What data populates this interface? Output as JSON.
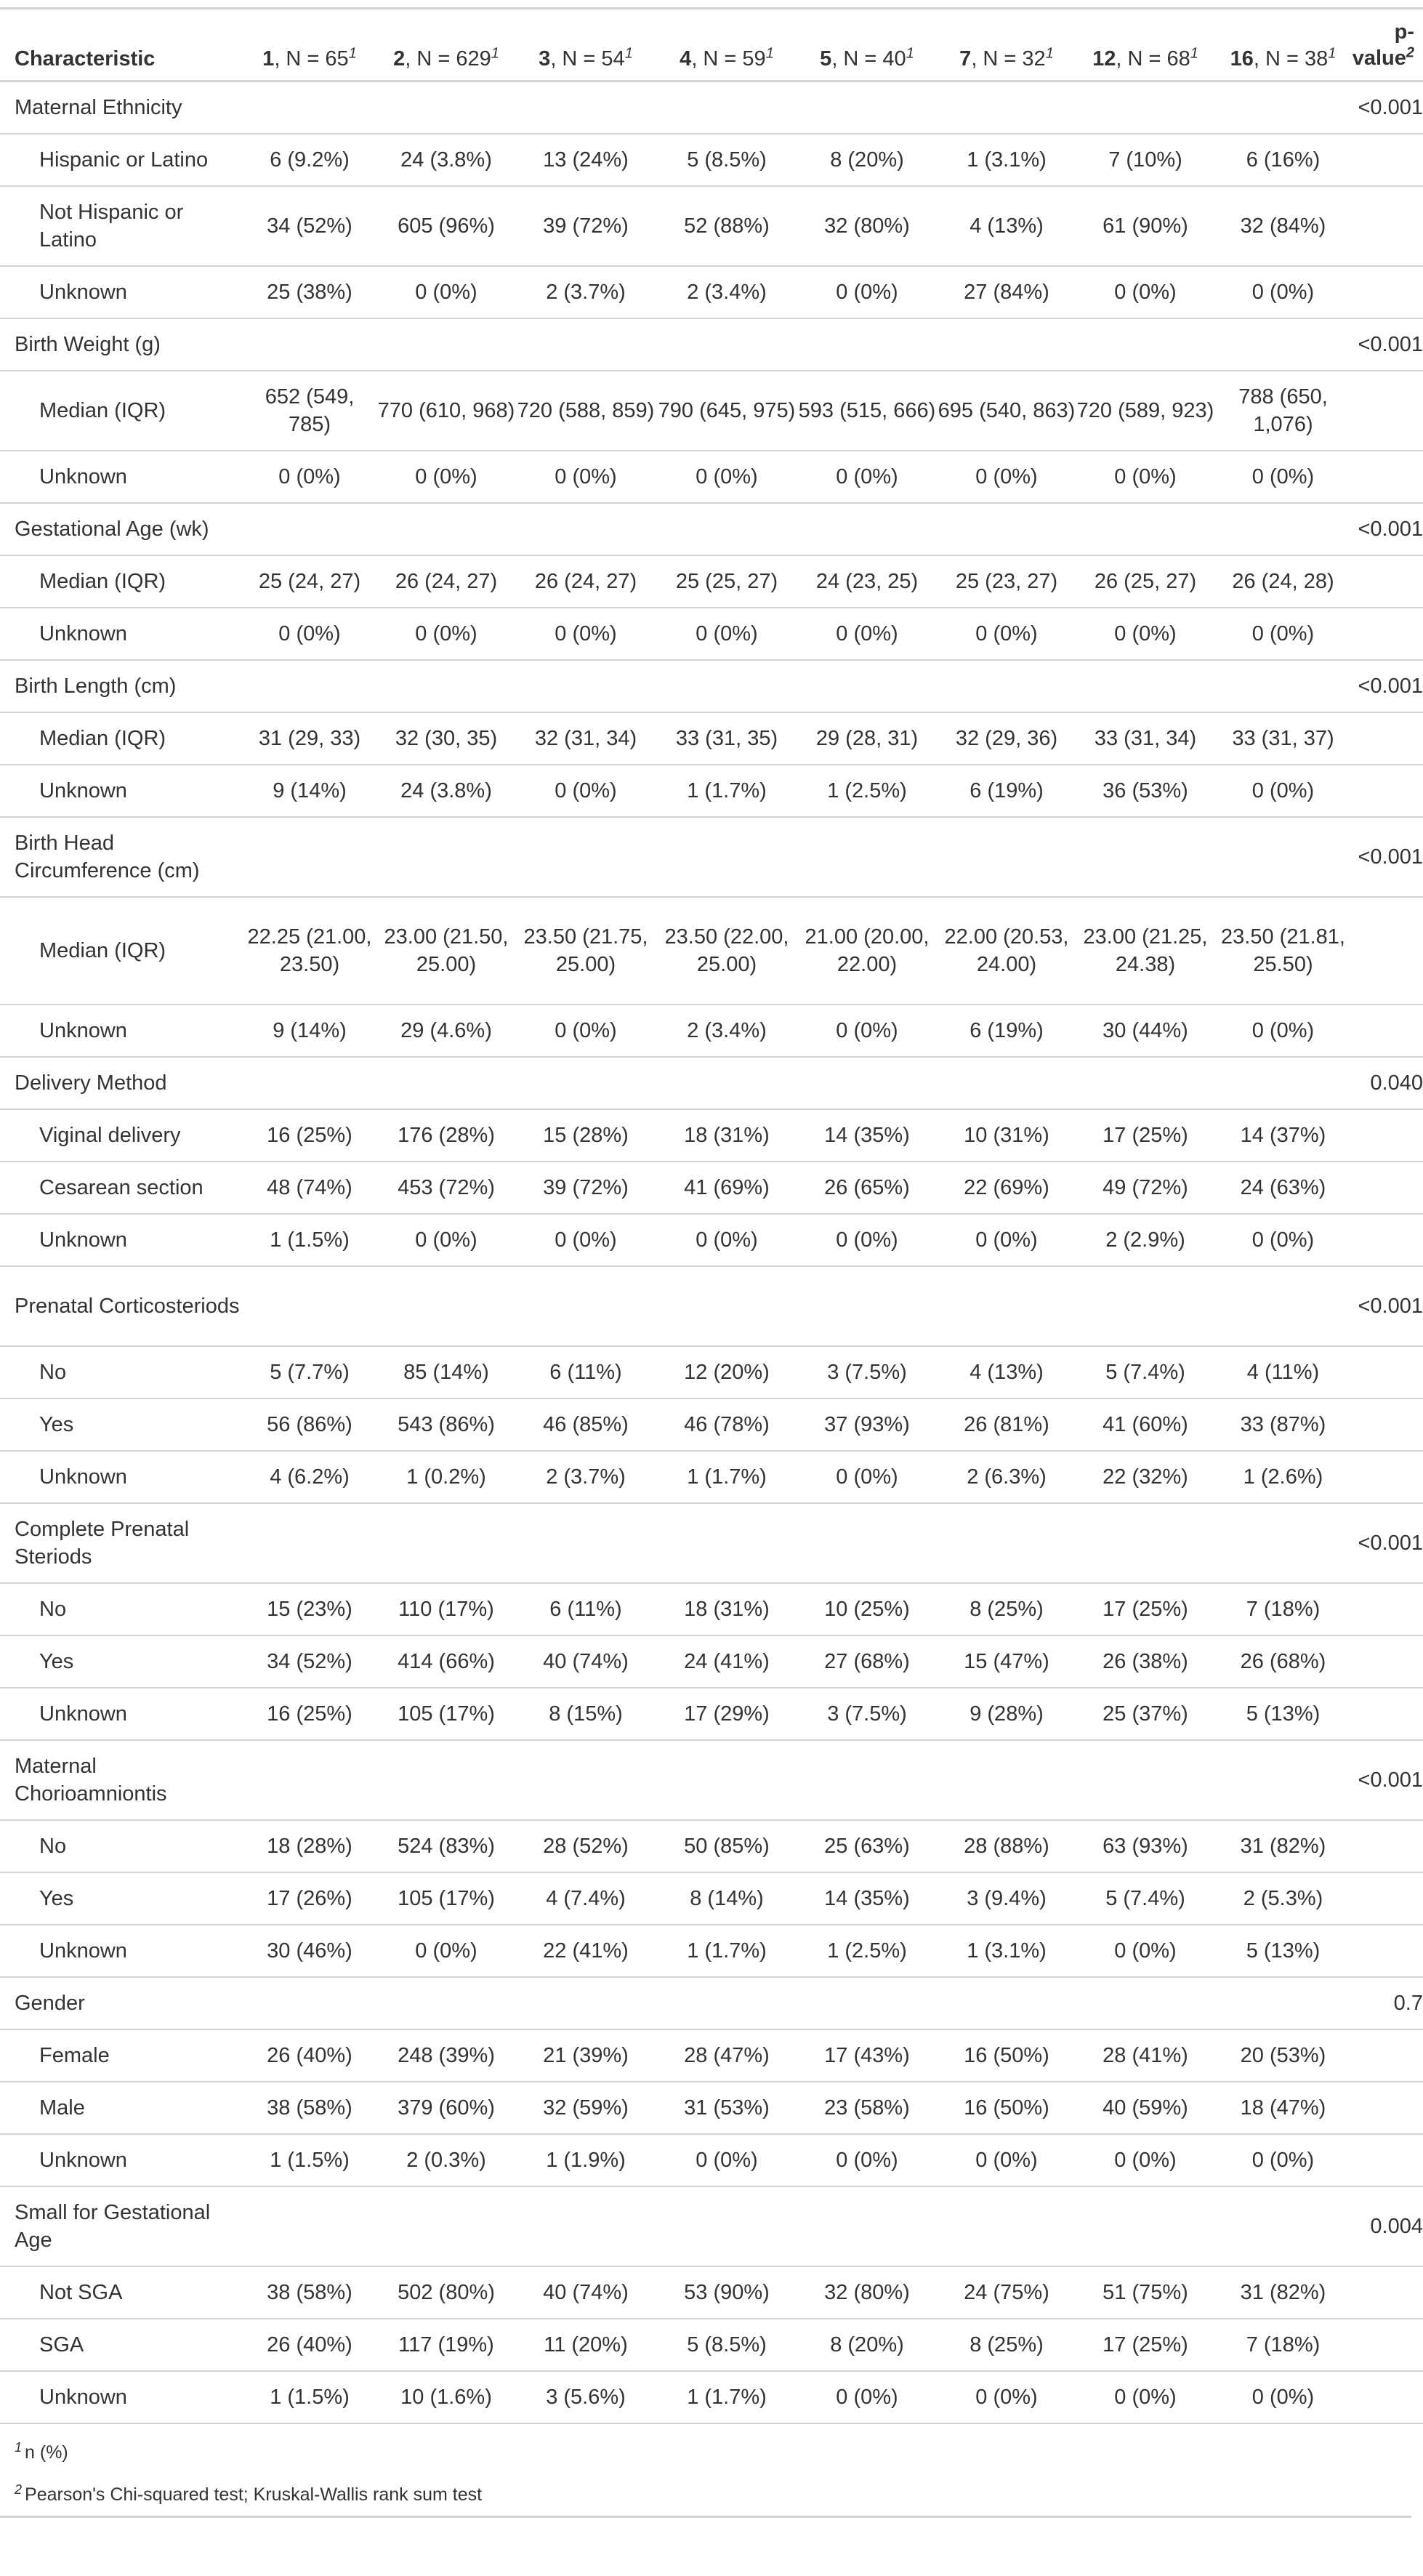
{
  "header": {
    "characteristic": "Characteristic",
    "columns": [
      {
        "bold": "1",
        "rest": ", N = 65",
        "mark": "1"
      },
      {
        "bold": "2",
        "rest": ", N = 629",
        "mark": "1"
      },
      {
        "bold": "3",
        "rest": ", N = 54",
        "mark": "1"
      },
      {
        "bold": "4",
        "rest": ", N = 59",
        "mark": "1"
      },
      {
        "bold": "5",
        "rest": ", N = 40",
        "mark": "1"
      },
      {
        "bold": "7",
        "rest": ", N = 32",
        "mark": "1"
      },
      {
        "bold": "12",
        "rest": ", N = 68",
        "mark": "1"
      },
      {
        "bold": "16",
        "rest": ", N = 38",
        "mark": "1"
      }
    ],
    "pvalue": "p-value",
    "pvalue_mark": "2"
  },
  "groups": [
    {
      "label": "Maternal Ethnicity",
      "p": "<0.001",
      "rows": [
        {
          "label": "Hispanic or Latino",
          "v": [
            "6 (9.2%)",
            "24 (3.8%)",
            "13 (24%)",
            "5 (8.5%)",
            "8 (20%)",
            "1 (3.1%)",
            "7 (10%)",
            "6 (16%)"
          ]
        },
        {
          "label": "Not Hispanic or Latino",
          "v": [
            "34 (52%)",
            "605 (96%)",
            "39 (72%)",
            "52 (88%)",
            "32 (80%)",
            "4 (13%)",
            "61 (90%)",
            "32 (84%)"
          ]
        },
        {
          "label": "Unknown",
          "v": [
            "25 (38%)",
            "0 (0%)",
            "2 (3.7%)",
            "2 (3.4%)",
            "0 (0%)",
            "27 (84%)",
            "0 (0%)",
            "0 (0%)"
          ]
        }
      ]
    },
    {
      "label": "Birth Weight (g)",
      "p": "<0.001",
      "rows": [
        {
          "label": "Median (IQR)",
          "v": [
            "652 (549, 785)",
            "770 (610, 968)",
            "720 (588, 859)",
            "790 (645, 975)",
            "593 (515, 666)",
            "695 (540, 863)",
            "720 (589, 923)",
            "788 (650, 1,076)"
          ]
        },
        {
          "label": "Unknown",
          "v": [
            "0 (0%)",
            "0 (0%)",
            "0 (0%)",
            "0 (0%)",
            "0 (0%)",
            "0 (0%)",
            "0 (0%)",
            "0 (0%)"
          ]
        }
      ]
    },
    {
      "label": "Gestational Age (wk)",
      "p": "<0.001",
      "rows": [
        {
          "label": "Median (IQR)",
          "v": [
            "25 (24, 27)",
            "26 (24, 27)",
            "26 (24, 27)",
            "25 (25, 27)",
            "24 (23, 25)",
            "25 (23, 27)",
            "26 (25, 27)",
            "26 (24, 28)"
          ]
        },
        {
          "label": "Unknown",
          "v": [
            "0 (0%)",
            "0 (0%)",
            "0 (0%)",
            "0 (0%)",
            "0 (0%)",
            "0 (0%)",
            "0 (0%)",
            "0 (0%)"
          ]
        }
      ]
    },
    {
      "label": "Birth Length (cm)",
      "p": "<0.001",
      "rows": [
        {
          "label": "Median (IQR)",
          "v": [
            "31 (29, 33)",
            "32 (30, 35)",
            "32 (31, 34)",
            "33 (31, 35)",
            "29 (28, 31)",
            "32 (29, 36)",
            "33 (31, 34)",
            "33 (31, 37)"
          ]
        },
        {
          "label": "Unknown",
          "v": [
            "9 (14%)",
            "24 (3.8%)",
            "0 (0%)",
            "1 (1.7%)",
            "1 (2.5%)",
            "6 (19%)",
            "36 (53%)",
            "0 (0%)"
          ]
        }
      ]
    },
    {
      "label": "Birth Head Circumference (cm)",
      "p": "<0.001",
      "rows": [
        {
          "label": "Median (IQR)",
          "v": [
            "22.25 (21.00, 23.50)",
            "23.00 (21.50, 25.00)",
            "23.50 (21.75, 25.00)",
            "23.50 (22.00, 25.00)",
            "21.00 (20.00, 22.00)",
            "22.00 (20.53, 24.00)",
            "23.00 (21.25, 24.38)",
            "23.50 (21.81, 25.50)"
          ]
        },
        {
          "label": "Unknown",
          "v": [
            "9 (14%)",
            "29 (4.6%)",
            "0 (0%)",
            "2 (3.4%)",
            "0 (0%)",
            "6 (19%)",
            "30 (44%)",
            "0 (0%)"
          ]
        }
      ]
    },
    {
      "label": "Delivery Method",
      "p": "0.040",
      "rows": [
        {
          "label": "Viginal delivery",
          "v": [
            "16 (25%)",
            "176 (28%)",
            "15 (28%)",
            "18 (31%)",
            "14 (35%)",
            "10 (31%)",
            "17 (25%)",
            "14 (37%)"
          ]
        },
        {
          "label": "Cesarean section",
          "v": [
            "48 (74%)",
            "453 (72%)",
            "39 (72%)",
            "41 (69%)",
            "26 (65%)",
            "22 (69%)",
            "49 (72%)",
            "24 (63%)"
          ]
        },
        {
          "label": "Unknown",
          "v": [
            "1 (1.5%)",
            "0 (0%)",
            "0 (0%)",
            "0 (0%)",
            "0 (0%)",
            "0 (0%)",
            "2 (2.9%)",
            "0 (0%)"
          ]
        }
      ]
    },
    {
      "label": "Prenatal Corticosteriods",
      "p": "<0.001",
      "rows": [
        {
          "label": "No",
          "v": [
            "5 (7.7%)",
            "85 (14%)",
            "6 (11%)",
            "12 (20%)",
            "3 (7.5%)",
            "4 (13%)",
            "5 (7.4%)",
            "4 (11%)"
          ]
        },
        {
          "label": "Yes",
          "v": [
            "56 (86%)",
            "543 (86%)",
            "46 (85%)",
            "46 (78%)",
            "37 (93%)",
            "26 (81%)",
            "41 (60%)",
            "33 (87%)"
          ]
        },
        {
          "label": "Unknown",
          "v": [
            "4 (6.2%)",
            "1 (0.2%)",
            "2 (3.7%)",
            "1 (1.7%)",
            "0 (0%)",
            "2 (6.3%)",
            "22 (32%)",
            "1 (2.6%)"
          ]
        }
      ]
    },
    {
      "label": "Complete Prenatal Steriods",
      "p": "<0.001",
      "rows": [
        {
          "label": "No",
          "v": [
            "15 (23%)",
            "110 (17%)",
            "6 (11%)",
            "18 (31%)",
            "10 (25%)",
            "8 (25%)",
            "17 (25%)",
            "7 (18%)"
          ]
        },
        {
          "label": "Yes",
          "v": [
            "34 (52%)",
            "414 (66%)",
            "40 (74%)",
            "24 (41%)",
            "27 (68%)",
            "15 (47%)",
            "26 (38%)",
            "26 (68%)"
          ]
        },
        {
          "label": "Unknown",
          "v": [
            "16 (25%)",
            "105 (17%)",
            "8 (15%)",
            "17 (29%)",
            "3 (7.5%)",
            "9 (28%)",
            "25 (37%)",
            "5 (13%)"
          ]
        }
      ]
    },
    {
      "label": "Maternal Chorioamniontis",
      "p": "<0.001",
      "rows": [
        {
          "label": "No",
          "v": [
            "18 (28%)",
            "524 (83%)",
            "28 (52%)",
            "50 (85%)",
            "25 (63%)",
            "28 (88%)",
            "63 (93%)",
            "31 (82%)"
          ]
        },
        {
          "label": "Yes",
          "v": [
            "17 (26%)",
            "105 (17%)",
            "4 (7.4%)",
            "8 (14%)",
            "14 (35%)",
            "3 (9.4%)",
            "5 (7.4%)",
            "2 (5.3%)"
          ]
        },
        {
          "label": "Unknown",
          "v": [
            "30 (46%)",
            "0 (0%)",
            "22 (41%)",
            "1 (1.7%)",
            "1 (2.5%)",
            "1 (3.1%)",
            "0 (0%)",
            "5 (13%)"
          ]
        }
      ]
    },
    {
      "label": "Gender",
      "p": "0.7",
      "rows": [
        {
          "label": "Female",
          "v": [
            "26 (40%)",
            "248 (39%)",
            "21 (39%)",
            "28 (47%)",
            "17 (43%)",
            "16 (50%)",
            "28 (41%)",
            "20 (53%)"
          ]
        },
        {
          "label": "Male",
          "v": [
            "38 (58%)",
            "379 (60%)",
            "32 (59%)",
            "31 (53%)",
            "23 (58%)",
            "16 (50%)",
            "40 (59%)",
            "18 (47%)"
          ]
        },
        {
          "label": "Unknown",
          "v": [
            "1 (1.5%)",
            "2 (0.3%)",
            "1 (1.9%)",
            "0 (0%)",
            "0 (0%)",
            "0 (0%)",
            "0 (0%)",
            "0 (0%)"
          ]
        }
      ]
    },
    {
      "label": "Small for Gestational Age",
      "p": "0.004",
      "rows": [
        {
          "label": "Not SGA",
          "v": [
            "38 (58%)",
            "502 (80%)",
            "40 (74%)",
            "53 (90%)",
            "32 (80%)",
            "24 (75%)",
            "51 (75%)",
            "31 (82%)"
          ]
        },
        {
          "label": "SGA",
          "v": [
            "26 (40%)",
            "117 (19%)",
            "11 (20%)",
            "5 (8.5%)",
            "8 (20%)",
            "8 (25%)",
            "17 (25%)",
            "7 (18%)"
          ]
        },
        {
          "label": "Unknown",
          "v": [
            "1 (1.5%)",
            "10 (1.6%)",
            "3 (5.6%)",
            "1 (1.7%)",
            "0 (0%)",
            "0 (0%)",
            "0 (0%)",
            "0 (0%)"
          ]
        }
      ]
    }
  ],
  "footnotes": [
    {
      "mark": "1",
      "text": "n (%)"
    },
    {
      "mark": "2",
      "text": "Pearson's Chi-squared test; Kruskal-Wallis rank sum test"
    }
  ]
}
